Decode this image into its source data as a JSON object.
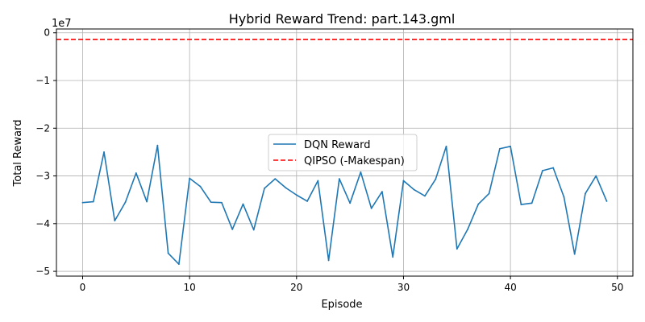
{
  "chart_data": {
    "type": "line",
    "title": "Hybrid Reward Trend: part.143.gml",
    "xlabel": "Episode",
    "ylabel": "Total Reward",
    "y_scale_label": "1e7",
    "xlim": [
      -2.45,
      51.45
    ],
    "ylim": [
      -5.1,
      0.08
    ],
    "x_ticks": [
      0,
      10,
      20,
      30,
      40,
      50
    ],
    "x_tick_labels": [
      "0",
      "10",
      "20",
      "30",
      "40",
      "50"
    ],
    "y_ticks": [
      0,
      -1,
      -2,
      -3,
      -4,
      -5
    ],
    "y_tick_labels": [
      "0",
      "−1",
      "−2",
      "−3",
      "−4",
      "−5"
    ],
    "grid": true,
    "legend_placement": "center",
    "series": [
      {
        "name": "DQN Reward",
        "style": "solid",
        "color": "#1f77b4",
        "x": [
          0,
          1,
          2,
          3,
          4,
          5,
          6,
          7,
          8,
          9,
          10,
          11,
          12,
          13,
          14,
          15,
          16,
          17,
          18,
          19,
          20,
          21,
          22,
          23,
          24,
          25,
          26,
          27,
          28,
          29,
          30,
          31,
          32,
          33,
          34,
          35,
          36,
          37,
          38,
          39,
          40,
          41,
          42,
          43,
          44,
          45,
          46,
          47,
          48,
          49
        ],
        "values": [
          -3.56,
          -3.54,
          -2.5,
          -3.94,
          -3.55,
          -2.94,
          -3.54,
          -2.36,
          -4.62,
          -4.85,
          -3.05,
          -3.22,
          -3.55,
          -3.56,
          -4.12,
          -3.59,
          -4.13,
          -3.26,
          -3.06,
          -3.25,
          -3.4,
          -3.53,
          -3.1,
          -4.77,
          -3.06,
          -3.57,
          -2.92,
          -3.68,
          -3.33,
          -4.7,
          -3.1,
          -3.29,
          -3.42,
          -3.07,
          -2.38,
          -4.53,
          -4.12,
          -3.59,
          -3.37,
          -2.43,
          -2.38,
          -3.6,
          -3.57,
          -2.89,
          -2.83,
          -3.44,
          -4.64,
          -3.37,
          -3.0,
          -3.53
        ]
      },
      {
        "name": "QIPSO (-Makespan)",
        "style": "dashed",
        "color": "#ff0000",
        "constant": -0.14
      }
    ]
  }
}
